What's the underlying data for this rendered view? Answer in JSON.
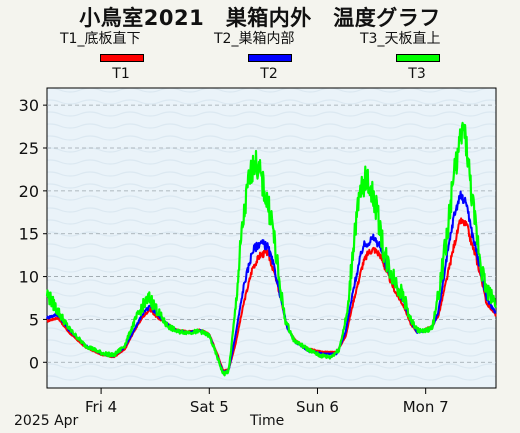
{
  "title": "小鳥室2021　巣箱内外　温度グラフ",
  "legend": {
    "items": [
      {
        "label": "T1_底板直下",
        "short": "T1",
        "color": "#ff0000"
      },
      {
        "label": "T2_巣箱内部",
        "short": "T2",
        "color": "#0000ff"
      },
      {
        "label": "T3_天板直上",
        "short": "T3",
        "color": "#00ff00"
      }
    ]
  },
  "footer": {
    "year_month": "2025 Apr",
    "xlabel": "Time"
  },
  "chart_data": {
    "type": "line",
    "title": "小鳥室2021　巣箱内外　温度グラフ",
    "xlabel": "Time",
    "ylabel": "",
    "x_unit": "day offset from Apr 3 12:00",
    "x_tick_labels": [
      "Fri 4",
      "Sat 5",
      "Sun 6",
      "Mon 7"
    ],
    "ylim": [
      -3,
      32
    ],
    "y_ticks": [
      0,
      5,
      10,
      15,
      20,
      25,
      30
    ],
    "grid": true,
    "legend_position": "top",
    "series": [
      {
        "name": "T1",
        "color": "#ff0000",
        "points": [
          [
            0,
            4.8
          ],
          [
            0.1,
            5.2
          ],
          [
            0.2,
            3.5
          ],
          [
            0.35,
            1.8
          ],
          [
            0.5,
            0.9
          ],
          [
            0.62,
            0.6
          ],
          [
            0.72,
            1.5
          ],
          [
            0.8,
            3.5
          ],
          [
            0.88,
            5.2
          ],
          [
            0.95,
            6.2
          ],
          [
            1.02,
            5.2
          ],
          [
            1.1,
            4.6
          ],
          [
            1.2,
            3.8
          ],
          [
            1.3,
            3.6
          ],
          [
            1.42,
            3.8
          ],
          [
            1.5,
            3.3
          ],
          [
            1.58,
            0.8
          ],
          [
            1.63,
            -1.0
          ],
          [
            1.68,
            -0.8
          ],
          [
            1.74,
            2.0
          ],
          [
            1.82,
            7.0
          ],
          [
            1.9,
            11.0
          ],
          [
            1.97,
            12.5
          ],
          [
            2.04,
            12.8
          ],
          [
            2.1,
            10.5
          ],
          [
            2.16,
            7.5
          ],
          [
            2.22,
            4.0
          ],
          [
            2.3,
            2.5
          ],
          [
            2.42,
            1.6
          ],
          [
            2.55,
            1.2
          ],
          [
            2.68,
            1.2
          ],
          [
            2.76,
            3.0
          ],
          [
            2.84,
            7.5
          ],
          [
            2.92,
            11.5
          ],
          [
            2.97,
            12.8
          ],
          [
            3.02,
            13.2
          ],
          [
            3.08,
            12.5
          ],
          [
            3.14,
            10.5
          ],
          [
            3.22,
            8.2
          ],
          [
            3.3,
            6.5
          ],
          [
            3.36,
            4.5
          ],
          [
            3.42,
            3.5
          ],
          [
            3.48,
            3.8
          ],
          [
            3.56,
            4.2
          ],
          [
            3.62,
            5.5
          ],
          [
            3.7,
            10.0
          ],
          [
            3.76,
            13.5
          ],
          [
            3.82,
            16.5
          ],
          [
            3.88,
            16.0
          ],
          [
            3.92,
            14.0
          ],
          [
            3.96,
            12.5
          ],
          [
            4.02,
            9.5
          ],
          [
            4.06,
            7.0
          ],
          [
            4.12,
            6.0
          ],
          [
            4.15,
            5.5
          ]
        ]
      },
      {
        "name": "T2",
        "color": "#0000ff",
        "points": [
          [
            0,
            5.2
          ],
          [
            0.1,
            5.6
          ],
          [
            0.2,
            3.8
          ],
          [
            0.35,
            2.0
          ],
          [
            0.5,
            1.0
          ],
          [
            0.62,
            0.7
          ],
          [
            0.72,
            1.8
          ],
          [
            0.8,
            3.6
          ],
          [
            0.88,
            5.6
          ],
          [
            0.95,
            6.5
          ],
          [
            1.02,
            5.6
          ],
          [
            1.1,
            4.6
          ],
          [
            1.2,
            3.7
          ],
          [
            1.3,
            3.5
          ],
          [
            1.42,
            3.7
          ],
          [
            1.5,
            3.2
          ],
          [
            1.58,
            0.5
          ],
          [
            1.63,
            -1.2
          ],
          [
            1.68,
            -0.9
          ],
          [
            1.74,
            3.0
          ],
          [
            1.82,
            9.0
          ],
          [
            1.9,
            13.0
          ],
          [
            1.97,
            14.0
          ],
          [
            2.04,
            13.5
          ],
          [
            2.1,
            11.0
          ],
          [
            2.16,
            7.5
          ],
          [
            2.22,
            4.0
          ],
          [
            2.3,
            2.3
          ],
          [
            2.42,
            1.3
          ],
          [
            2.55,
            1.0
          ],
          [
            2.68,
            1.0
          ],
          [
            2.76,
            3.5
          ],
          [
            2.84,
            9.0
          ],
          [
            2.92,
            13.5
          ],
          [
            2.97,
            14.0
          ],
          [
            3.02,
            14.5
          ],
          [
            3.08,
            13.5
          ],
          [
            3.14,
            11.0
          ],
          [
            3.22,
            9.0
          ],
          [
            3.3,
            7.0
          ],
          [
            3.36,
            4.8
          ],
          [
            3.42,
            3.5
          ],
          [
            3.48,
            3.6
          ],
          [
            3.56,
            4.0
          ],
          [
            3.62,
            6.0
          ],
          [
            3.7,
            12.5
          ],
          [
            3.76,
            17.0
          ],
          [
            3.82,
            19.5
          ],
          [
            3.88,
            18.5
          ],
          [
            3.92,
            15.5
          ],
          [
            3.96,
            13.5
          ],
          [
            4.02,
            10.0
          ],
          [
            4.06,
            7.5
          ],
          [
            4.12,
            6.3
          ],
          [
            4.15,
            5.8
          ]
        ]
      },
      {
        "name": "T3",
        "color": "#00ff00",
        "points": [
          [
            0,
            8.0
          ],
          [
            0.05,
            7.0
          ],
          [
            0.1,
            6.0
          ],
          [
            0.2,
            4.0
          ],
          [
            0.35,
            2.0
          ],
          [
            0.5,
            1.1
          ],
          [
            0.62,
            0.8
          ],
          [
            0.72,
            2.0
          ],
          [
            0.8,
            4.5
          ],
          [
            0.88,
            6.5
          ],
          [
            0.95,
            7.5
          ],
          [
            1.02,
            6.0
          ],
          [
            1.1,
            4.4
          ],
          [
            1.2,
            3.6
          ],
          [
            1.3,
            3.5
          ],
          [
            1.42,
            3.6
          ],
          [
            1.5,
            3.1
          ],
          [
            1.58,
            0.4
          ],
          [
            1.63,
            -1.4
          ],
          [
            1.68,
            -1.0
          ],
          [
            1.74,
            6.0
          ],
          [
            1.8,
            15.0
          ],
          [
            1.86,
            21.0
          ],
          [
            1.92,
            23.5
          ],
          [
            1.97,
            22.0
          ],
          [
            2.02,
            19.5
          ],
          [
            2.08,
            16.5
          ],
          [
            2.14,
            10.0
          ],
          [
            2.2,
            5.0
          ],
          [
            2.28,
            2.6
          ],
          [
            2.4,
            1.6
          ],
          [
            2.52,
            0.8
          ],
          [
            2.62,
            0.6
          ],
          [
            2.7,
            1.5
          ],
          [
            2.78,
            6.0
          ],
          [
            2.84,
            15.0
          ],
          [
            2.9,
            20.0
          ],
          [
            2.95,
            21.5
          ],
          [
            3.0,
            20.0
          ],
          [
            3.06,
            17.0
          ],
          [
            3.12,
            12.5
          ],
          [
            3.2,
            10.0
          ],
          [
            3.3,
            7.5
          ],
          [
            3.36,
            5.0
          ],
          [
            3.42,
            3.8
          ],
          [
            3.48,
            3.6
          ],
          [
            3.56,
            4.0
          ],
          [
            3.62,
            8.0
          ],
          [
            3.7,
            15.0
          ],
          [
            3.76,
            22.0
          ],
          [
            3.8,
            24.5
          ],
          [
            3.85,
            27.5
          ],
          [
            3.88,
            25.0
          ],
          [
            3.92,
            20.0
          ],
          [
            3.96,
            16.0
          ],
          [
            4.02,
            11.0
          ],
          [
            4.06,
            8.5
          ],
          [
            4.12,
            7.5
          ],
          [
            4.15,
            7.0
          ]
        ]
      }
    ]
  }
}
